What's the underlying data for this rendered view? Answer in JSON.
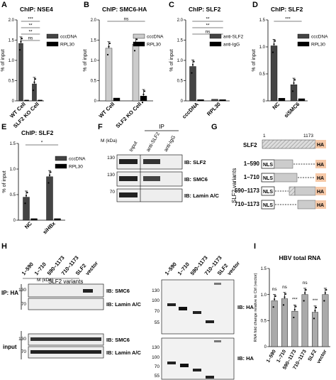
{
  "colors": {
    "bar_dark": "#444444",
    "bar_black": "#000000",
    "bar_light": "#cccccc",
    "ha_box": "#f6c9a8",
    "stripe": "#bbbbbb",
    "blot_bg": "#eeeeee"
  },
  "chart_data": [
    {
      "id": "A",
      "type": "bar",
      "title": "ChIP: NSE4",
      "ylabel": "% of input",
      "ylim": [
        0,
        2.0
      ],
      "yticks": [
        "0",
        "0.5",
        "1.0",
        "1.5",
        "2.0"
      ],
      "categories": [
        "WT Cell",
        "SLF2 KO Cell"
      ],
      "series": [
        {
          "name": "cccDNA",
          "values": [
            1.42,
            0.42
          ]
        },
        {
          "name": "RPL30",
          "values": [
            0.02,
            0.02
          ]
        }
      ],
      "sig": [
        "***",
        "**",
        "**",
        "ns"
      ]
    },
    {
      "id": "B",
      "type": "bar",
      "title": "ChIP: SMC6-HA",
      "ylabel": "% of input",
      "ylim": [
        0,
        2.0
      ],
      "yticks": [
        "0",
        "0.5",
        "1.0",
        "1.5",
        "2.0"
      ],
      "categories": [
        "WT Cell",
        "SLF2 KO Cell"
      ],
      "series": [
        {
          "name": "cccDNA",
          "values": [
            1.3,
            1.4
          ]
        },
        {
          "name": "RPL30",
          "values": [
            0.07,
            0.12
          ]
        }
      ],
      "sig": [
        "ns"
      ]
    },
    {
      "id": "C",
      "type": "bar",
      "title": "ChIP: SLF2",
      "ylabel": "% of input",
      "ylim": [
        0,
        2.0
      ],
      "yticks": [
        "0",
        "0.5",
        "1.0",
        "1.5",
        "2.0"
      ],
      "categories": [
        "cccDNA",
        "RPL30"
      ],
      "series": [
        {
          "name": "anti-SLF2",
          "values": [
            0.85,
            0.04
          ]
        },
        {
          "name": "anti-IgG",
          "values": [
            0.03,
            0.03
          ]
        }
      ],
      "sig": [
        "**",
        "**",
        "ns"
      ]
    },
    {
      "id": "D",
      "type": "bar",
      "title": "ChIP: SLF2",
      "ylabel": "% of input",
      "ylim": [
        0,
        1.5
      ],
      "yticks": [
        "0",
        "0.5",
        "1.0",
        "1.5"
      ],
      "categories": [
        "NC",
        "siSMC6"
      ],
      "series": [
        {
          "name": "cccDNA",
          "values": [
            1.02,
            0.3
          ]
        },
        {
          "name": "RPL30",
          "values": [
            0.05,
            0.04
          ]
        }
      ],
      "sig": [
        "***"
      ]
    },
    {
      "id": "E",
      "type": "bar",
      "title": "ChIP: SLF2",
      "ylabel": "% of input",
      "ylim": [
        0,
        1.5
      ],
      "yticks": [
        "0",
        "0.5",
        "1.0",
        "1.5"
      ],
      "categories": [
        "NC",
        "siHBx"
      ],
      "series": [
        {
          "name": "cccDNA",
          "values": [
            0.45,
            0.85
          ]
        },
        {
          "name": "RPL30",
          "values": [
            0.03,
            0.03
          ]
        }
      ],
      "sig": [
        "*"
      ]
    },
    {
      "id": "I",
      "type": "bar",
      "title": "HBV total RNA",
      "ylabel": "RNA fold change relative to Ctrl (vector)",
      "ylim": [
        0,
        1.5
      ],
      "yticks": [
        "0",
        "0.5",
        "1.0",
        "1.5"
      ],
      "categories": [
        "1–590",
        "1–710",
        "590–1173",
        "710–1173",
        "SLF2",
        "vector"
      ],
      "series": [
        {
          "name": "",
          "values": [
            0.88,
            0.92,
            0.68,
            1.0,
            0.66,
            1.0
          ]
        }
      ],
      "sig": [
        "ns",
        "ns",
        "***",
        "ns",
        "***",
        ""
      ],
      "group_label": "SLF2 variants"
    }
  ],
  "panels": {
    "A": "A",
    "B": "B",
    "C": "C",
    "D": "D",
    "E": "E",
    "F": "F",
    "G": "G",
    "H": "H",
    "I": "I"
  },
  "blotF": {
    "mw_title": "M (kDa)",
    "ip_label": "IP",
    "lanes": [
      "Input",
      "anti-SLF2",
      "anti-IgG"
    ],
    "markers": [
      "130",
      "130",
      "70"
    ],
    "rows": [
      "IB: SLF2",
      "IB: SMC6",
      "IB: Lamin A/C"
    ]
  },
  "schematicG": {
    "title": "SLF2",
    "start": "1",
    "end": "1173",
    "group_label": "SLF2 variants",
    "nls": "NLS",
    "ha": "HA",
    "constructs": [
      "1–590",
      "1–710",
      "590–1173",
      "710–1173"
    ]
  },
  "blotH": {
    "mw_title": "M (kDa)",
    "group_label": "SLF2 variants",
    "lanes": [
      "1–590",
      "1–710",
      "590–1173",
      "710–1173",
      "SLF2",
      "vector"
    ],
    "ip_label": "IP: HA",
    "input_label": "input",
    "left_markers": [
      "130",
      "70",
      "130",
      "70"
    ],
    "left_rows": [
      "IB: SMC6",
      "IB: Lamin A/C",
      "IB: SMC6",
      "IB: Lamin A/C"
    ],
    "right_markers_top": [
      "130",
      "100",
      "70",
      "55"
    ],
    "right_markers_bottom": [
      "130",
      "100",
      "70",
      "55"
    ],
    "right_rows": [
      "IB: HA",
      "IB: HA"
    ]
  }
}
